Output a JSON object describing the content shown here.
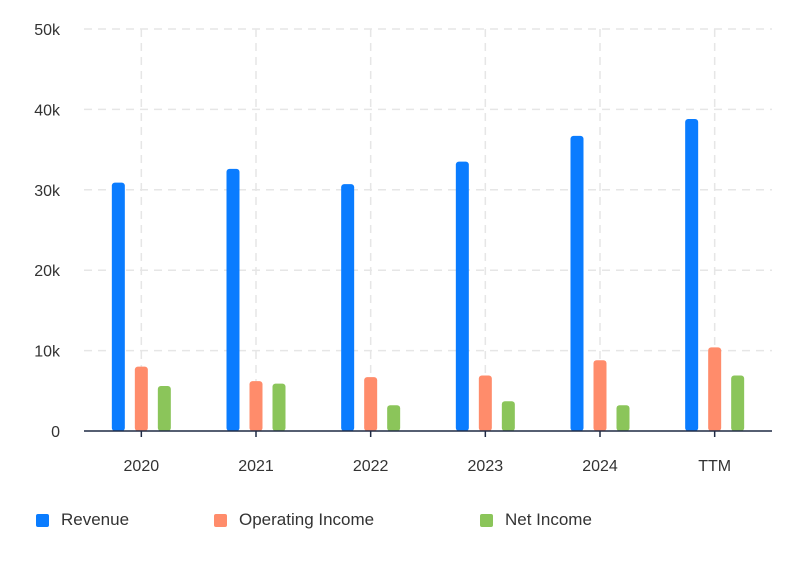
{
  "chart_data": {
    "type": "bar",
    "categories": [
      "2020",
      "2021",
      "2022",
      "2023",
      "2024",
      "TTM"
    ],
    "series": [
      {
        "name": "Revenue",
        "color": "#0a7cff",
        "values": [
          30900,
          32600,
          30700,
          33500,
          36700,
          38800
        ]
      },
      {
        "name": "Operating Income",
        "color": "#ff8c6b",
        "values": [
          8000,
          6200,
          6700,
          6900,
          8800,
          10400
        ]
      },
      {
        "name": "Net Income",
        "color": "#8bc55a",
        "values": [
          5600,
          5900,
          3200,
          3700,
          3200,
          6900
        ]
      }
    ],
    "yticks": [
      "0",
      "10k",
      "20k",
      "30k",
      "40k",
      "50k"
    ],
    "ylim": [
      0,
      50000
    ],
    "grid": true,
    "legend_position": "bottom"
  }
}
